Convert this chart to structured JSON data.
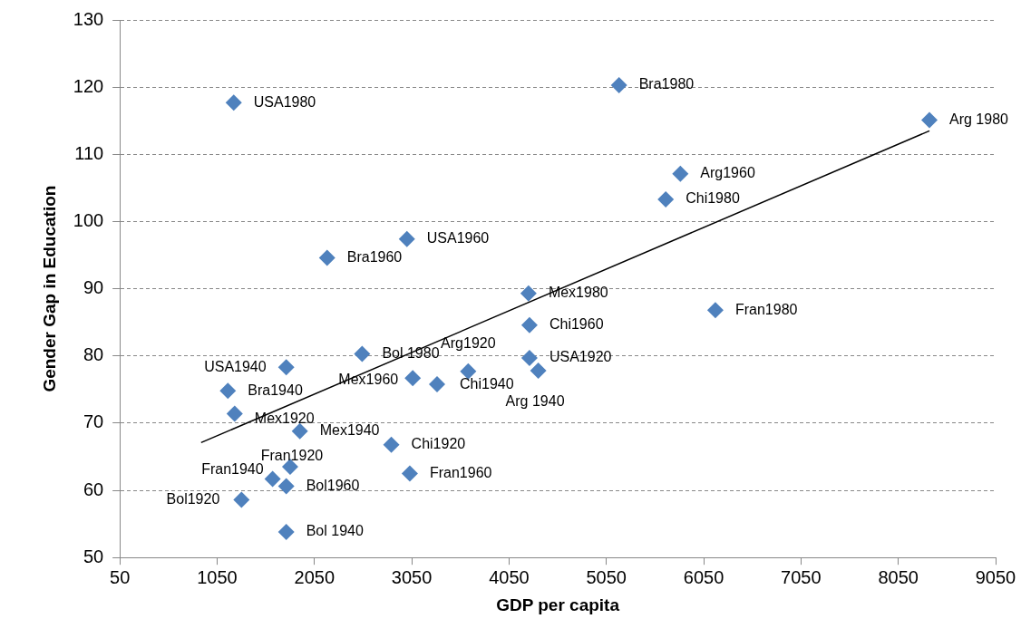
{
  "chart_data": {
    "type": "scatter",
    "xlabel": "GDP per capita",
    "ylabel": "Gender Gap in Education",
    "xlim": [
      50,
      9050
    ],
    "xticks": [
      50,
      1050,
      2050,
      3050,
      4050,
      5050,
      6050,
      7050,
      8050,
      9050
    ],
    "ylim": [
      50,
      130
    ],
    "yticks": [
      50,
      60,
      70,
      80,
      90,
      100,
      110,
      120,
      130
    ],
    "grid": "y",
    "legend": false,
    "series": [
      {
        "type": "scatter",
        "color": "#4f81bd",
        "marker": "diamond",
        "x": [
          1220,
          5180,
          8370,
          5810,
          5660,
          3000,
          2180,
          4250,
          6170,
          4260,
          2540,
          1760,
          4260,
          4350,
          3630,
          3310,
          3060,
          1160,
          1230,
          1900,
          2840,
          3030,
          1800,
          1620,
          1760,
          1300,
          1760
        ],
        "values": [
          117.7,
          120.3,
          115.1,
          107.1,
          103.3,
          97.4,
          94.6,
          89.3,
          86.8,
          84.6,
          80.3,
          78.3,
          79.7,
          77.8,
          77.7,
          75.8,
          76.7,
          74.8,
          71.4,
          68.8,
          66.8,
          62.5,
          63.5,
          61.7,
          60.6,
          58.6,
          53.8
        ]
      },
      {
        "type": "line",
        "color": "#000000",
        "marker": "none",
        "line_style": "solid",
        "x": [
          885,
          8370
        ],
        "values": [
          67.1,
          113.5
        ]
      }
    ],
    "annotations": [
      {
        "text": "USA1980",
        "x": 1220,
        "y": 117.7
      },
      {
        "text": "Bra1980",
        "x": 5180,
        "y": 120.3
      },
      {
        "text": "Arg 1980",
        "x": 8370,
        "y": 115.1
      },
      {
        "text": "Arg1960",
        "x": 5810,
        "y": 107.1
      },
      {
        "text": "Chi1980",
        "x": 5660,
        "y": 103.3
      },
      {
        "text": "USA1960",
        "x": 3000,
        "y": 97.4
      },
      {
        "text": "Bra1960",
        "x": 2180,
        "y": 94.6
      },
      {
        "text": "Mex1980",
        "x": 4250,
        "y": 89.3
      },
      {
        "text": "Fran1980",
        "x": 6170,
        "y": 86.8
      },
      {
        "text": "Chi1960",
        "x": 4260,
        "y": 84.6
      },
      {
        "text": "Bol 1980",
        "x": 2540,
        "y": 80.3
      },
      {
        "text": "USA1940",
        "x": 1760,
        "y": 78.3
      },
      {
        "text": "USA1920",
        "x": 4260,
        "y": 79.7
      },
      {
        "text": "Arg 1940",
        "x": 4350,
        "y": 77.8
      },
      {
        "text": "Arg1920",
        "x": 3630,
        "y": 77.7
      },
      {
        "text": "Chi1940",
        "x": 3310,
        "y": 75.8
      },
      {
        "text": "Mex1960",
        "x": 3060,
        "y": 76.7
      },
      {
        "text": "Bra1940",
        "x": 1160,
        "y": 74.8
      },
      {
        "text": "Mex1920",
        "x": 1230,
        "y": 71.4
      },
      {
        "text": "Mex1940",
        "x": 1900,
        "y": 68.8
      },
      {
        "text": "Chi1920",
        "x": 2840,
        "y": 66.8
      },
      {
        "text": "Fran1960",
        "x": 3030,
        "y": 62.5
      },
      {
        "text": "Fran1920",
        "x": 1800,
        "y": 63.5
      },
      {
        "text": "Fran1940",
        "x": 1620,
        "y": 61.7
      },
      {
        "text": "Bol1960",
        "x": 1760,
        "y": 60.6
      },
      {
        "text": "Bol1920",
        "x": 1300,
        "y": 58.6
      },
      {
        "text": "Bol 1940",
        "x": 1760,
        "y": 53.8
      }
    ]
  }
}
